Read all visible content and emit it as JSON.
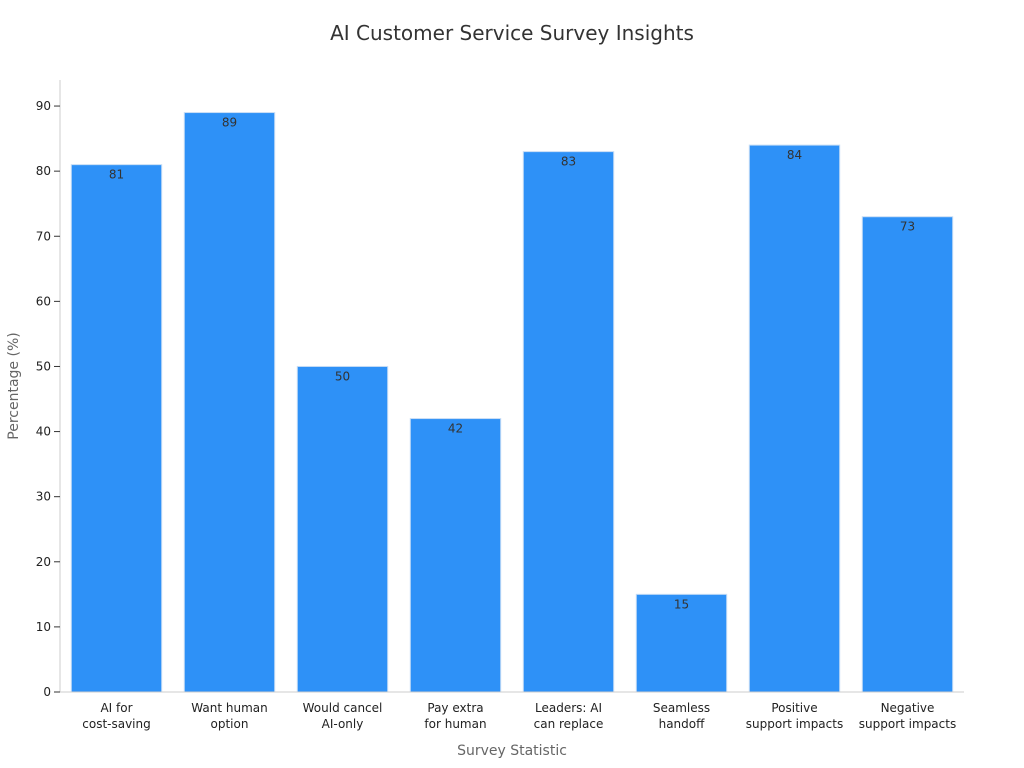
{
  "chart_data": {
    "type": "bar",
    "title": "AI Customer Service Survey Insights",
    "xlabel": "Survey Statistic",
    "ylabel": "Percentage (%)",
    "ylim": [
      0,
      94
    ],
    "yticks": [
      0,
      10,
      20,
      30,
      40,
      50,
      60,
      70,
      80,
      90
    ],
    "grid": false,
    "bar_color": "#2E91F7",
    "bar_edge_color": "#C7DDF5",
    "categories": [
      [
        "AI for",
        "cost-saving"
      ],
      [
        "Want human",
        "option"
      ],
      [
        "Would cancel",
        "AI-only"
      ],
      [
        "Pay extra",
        "for human"
      ],
      [
        "Leaders: AI",
        "can replace"
      ],
      [
        "Seamless",
        "handoff"
      ],
      [
        "Positive",
        "support impacts"
      ],
      [
        "Negative",
        "support impacts"
      ]
    ],
    "values": [
      81,
      89,
      50,
      42,
      83,
      15,
      84,
      73
    ]
  }
}
